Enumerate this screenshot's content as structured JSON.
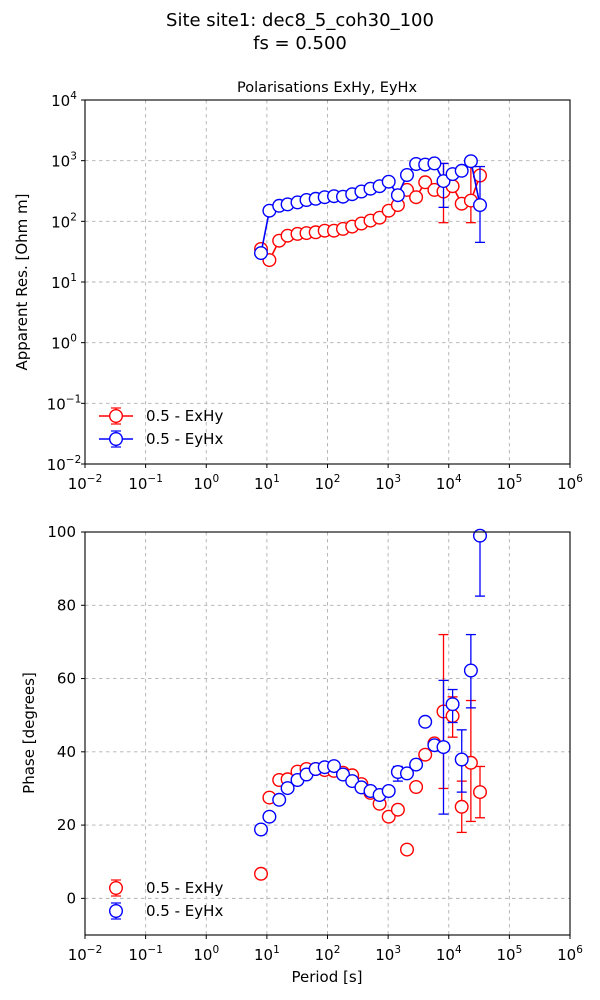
{
  "figure": {
    "title_line1": "Site site1: dec8_5_coh30_100",
    "title_line2": "fs = 0.500"
  },
  "chart_data": [
    {
      "type": "scatter",
      "title": "Polarisations ExHy, EyHx",
      "ylabel": "Apparent Res. [Ohm m]",
      "xlabel": "",
      "xscale": "log",
      "yscale": "log",
      "xlim": [
        0.01,
        1000000
      ],
      "ylim": [
        0.01,
        10000
      ],
      "x_tick_exponents": [
        -2,
        -1,
        0,
        1,
        2,
        3,
        4,
        5,
        6
      ],
      "y_tick_exponents": [
        -2,
        -1,
        0,
        1,
        2,
        3,
        4
      ],
      "tick_base": "10",
      "grid": true,
      "legend_position": "lower-left",
      "connected": true,
      "series": [
        {
          "name": "0.5 - ExHy",
          "color": "#ff0000",
          "x": [
            8,
            11,
            16,
            22,
            32,
            45,
            64,
            90,
            128,
            180,
            256,
            362,
            512,
            724,
            1024,
            1448,
            2048,
            2896,
            4096,
            5793,
            8192,
            11585,
            16384,
            23170,
            32768
          ],
          "y": [
            35,
            23,
            48,
            58,
            62,
            64,
            66,
            70,
            70,
            75,
            82,
            92,
            103,
            115,
            150,
            185,
            330,
            250,
            440,
            330,
            310,
            380,
            195,
            220,
            570
          ],
          "err_low": [
            null,
            null,
            null,
            null,
            null,
            null,
            null,
            null,
            null,
            null,
            null,
            null,
            null,
            null,
            null,
            null,
            null,
            null,
            null,
            null,
            95,
            null,
            null,
            95,
            null
          ],
          "err_high": [
            null,
            null,
            null,
            null,
            null,
            null,
            null,
            null,
            null,
            null,
            null,
            null,
            null,
            null,
            null,
            null,
            null,
            null,
            null,
            null,
            900,
            null,
            null,
            800,
            null
          ]
        },
        {
          "name": "0.5 - EyHx",
          "color": "#0000ff",
          "x": [
            8,
            11,
            16,
            22,
            32,
            45,
            64,
            90,
            128,
            180,
            256,
            362,
            512,
            724,
            1024,
            1448,
            2048,
            2896,
            4096,
            5793,
            8192,
            11585,
            16384,
            23170,
            32768
          ],
          "y": [
            30,
            150,
            180,
            190,
            205,
            225,
            235,
            250,
            260,
            255,
            280,
            310,
            345,
            380,
            450,
            270,
            580,
            880,
            860,
            900,
            460,
            600,
            680,
            980,
            185
          ],
          "err_low": [
            null,
            null,
            null,
            null,
            null,
            null,
            null,
            null,
            null,
            null,
            null,
            null,
            null,
            null,
            null,
            null,
            null,
            null,
            null,
            null,
            170,
            null,
            null,
            null,
            45
          ],
          "err_high": [
            null,
            null,
            null,
            null,
            null,
            null,
            null,
            null,
            null,
            null,
            null,
            null,
            null,
            null,
            null,
            null,
            null,
            null,
            null,
            null,
            900,
            null,
            null,
            null,
            800
          ]
        }
      ]
    },
    {
      "type": "scatter",
      "title": "",
      "ylabel": "Phase [degrees]",
      "xlabel": "Period [s]",
      "xscale": "log",
      "yscale": "linear",
      "xlim": [
        0.01,
        1000000
      ],
      "ylim": [
        -10,
        100
      ],
      "x_tick_exponents": [
        -2,
        -1,
        0,
        1,
        2,
        3,
        4,
        5,
        6
      ],
      "y_ticks": [
        "0",
        "20",
        "40",
        "60",
        "80",
        "100"
      ],
      "tick_base": "10",
      "grid": true,
      "legend_position": "lower-left",
      "connected": false,
      "series": [
        {
          "name": "0.5 - ExHy",
          "color": "#ff0000",
          "x": [
            8,
            11,
            16,
            22,
            32,
            45,
            64,
            90,
            128,
            180,
            256,
            362,
            512,
            724,
            1024,
            1448,
            2048,
            2896,
            4096,
            5793,
            8192,
            11585,
            16384,
            23170,
            32768
          ],
          "y": [
            6.7,
            27.5,
            32.3,
            32.5,
            34.6,
            35.3,
            35.3,
            35.0,
            34.8,
            34.3,
            33.6,
            31.2,
            28.8,
            25.8,
            22.3,
            24.2,
            13.3,
            30.4,
            39.2,
            42.3,
            51.0,
            49.8,
            25.0,
            37.0,
            29.0
          ],
          "err_low": [
            null,
            null,
            null,
            null,
            null,
            null,
            null,
            null,
            null,
            null,
            null,
            null,
            null,
            null,
            null,
            null,
            null,
            null,
            null,
            null,
            30.0,
            44.0,
            18.0,
            21.0,
            22.0
          ],
          "err_high": [
            null,
            null,
            null,
            null,
            null,
            null,
            null,
            null,
            null,
            null,
            null,
            null,
            null,
            null,
            null,
            null,
            null,
            null,
            null,
            null,
            72.0,
            55.0,
            32.0,
            54.0,
            36.0
          ]
        },
        {
          "name": "0.5 - EyHx",
          "color": "#0000ff",
          "x": [
            8,
            11,
            16,
            22,
            32,
            45,
            64,
            90,
            128,
            180,
            256,
            362,
            512,
            724,
            1024,
            1448,
            2048,
            2896,
            4096,
            5793,
            8192,
            11585,
            16384,
            23170,
            32768
          ],
          "y": [
            18.8,
            22.3,
            26.9,
            30.1,
            32.3,
            33.8,
            35.3,
            35.8,
            36.1,
            33.8,
            32.0,
            30.3,
            29.3,
            28.2,
            29.3,
            34.5,
            34.1,
            36.5,
            48.2,
            41.8,
            41.3,
            53.0,
            37.9,
            62.2,
            99.0
          ],
          "err_low": [
            null,
            null,
            null,
            null,
            null,
            null,
            null,
            null,
            null,
            null,
            null,
            null,
            null,
            null,
            null,
            32.0,
            null,
            null,
            null,
            null,
            23.0,
            48.0,
            29.0,
            52.0,
            82.5
          ],
          "err_high": [
            null,
            null,
            null,
            null,
            null,
            null,
            null,
            null,
            null,
            null,
            null,
            null,
            null,
            null,
            null,
            36.0,
            null,
            null,
            null,
            null,
            59.5,
            57.0,
            46.0,
            72.0,
            100.0
          ]
        }
      ]
    }
  ]
}
